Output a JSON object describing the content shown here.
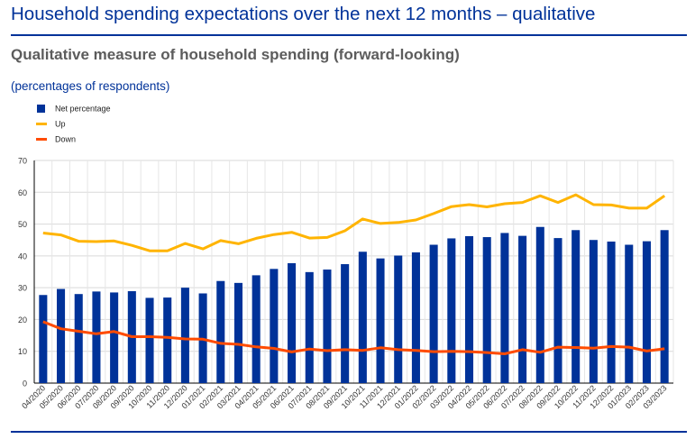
{
  "header": {
    "page_title": "Household spending expectations over the next 12 months – qualitative",
    "chart_title": "Qualitative measure of household spending (forward-looking)",
    "subtitle": "(percentages of respondents)"
  },
  "colors": {
    "brand": "#003299",
    "net_bar": "#003299",
    "up_line": "#FFB400",
    "down_line": "#FF4B00"
  },
  "chart_data": {
    "type": "bar",
    "categories": [
      "04/2020",
      "05/2020",
      "06/2020",
      "07/2020",
      "08/2020",
      "09/2020",
      "10/2020",
      "11/2020",
      "12/2020",
      "01/2021",
      "02/2021",
      "03/2021",
      "04/2021",
      "05/2021",
      "06/2021",
      "07/2021",
      "08/2021",
      "09/2021",
      "10/2021",
      "11/2021",
      "12/2021",
      "01/2022",
      "02/2022",
      "03/2022",
      "04/2022",
      "05/2022",
      "06/2022",
      "07/2022",
      "08/2022",
      "09/2022",
      "10/2022",
      "11/2022",
      "12/2022",
      "01/2023",
      "02/2023",
      "03/2023"
    ],
    "series": [
      {
        "name": "Net percentage",
        "type": "bar",
        "color": "#003299",
        "values": [
          27.7,
          29.6,
          28.0,
          28.8,
          28.5,
          28.9,
          26.8,
          26.9,
          30.0,
          28.2,
          32.1,
          31.5,
          33.9,
          35.9,
          37.7,
          34.9,
          35.7,
          37.4,
          41.3,
          39.2,
          40.1,
          41.1,
          43.5,
          45.5,
          46.2,
          45.9,
          47.2,
          46.3,
          49.1,
          45.6,
          48.1,
          45.0,
          44.5,
          43.5,
          44.6,
          48.1
        ]
      },
      {
        "name": "Up",
        "type": "line",
        "color": "#FFB400",
        "values": [
          47.2,
          46.6,
          44.6,
          44.5,
          44.7,
          43.3,
          41.6,
          41.6,
          43.9,
          42.2,
          44.8,
          43.8,
          45.5,
          46.7,
          47.4,
          45.6,
          45.8,
          47.9,
          51.6,
          50.2,
          50.5,
          51.3,
          53.3,
          55.5,
          56.1,
          55.4,
          56.4,
          56.8,
          58.9,
          56.8,
          59.2,
          56.1,
          56.0,
          55.0,
          55.0,
          58.9
        ]
      },
      {
        "name": "Down",
        "type": "line",
        "color": "#FF4B00",
        "values": [
          19.3,
          17.1,
          16.3,
          15.5,
          16.2,
          14.6,
          14.6,
          14.4,
          13.9,
          13.8,
          12.5,
          12.2,
          11.4,
          10.9,
          9.8,
          10.7,
          10.2,
          10.5,
          10.3,
          11.1,
          10.5,
          10.3,
          9.9,
          10.0,
          9.9,
          9.6,
          9.2,
          10.5,
          9.7,
          11.3,
          11.2,
          11.0,
          11.5,
          11.3,
          10.1,
          10.8
        ]
      }
    ],
    "ylim": [
      0,
      70
    ],
    "yticks": [
      0,
      10,
      20,
      30,
      40,
      50,
      60,
      70
    ],
    "grid": true,
    "legend_position": "top-left"
  }
}
